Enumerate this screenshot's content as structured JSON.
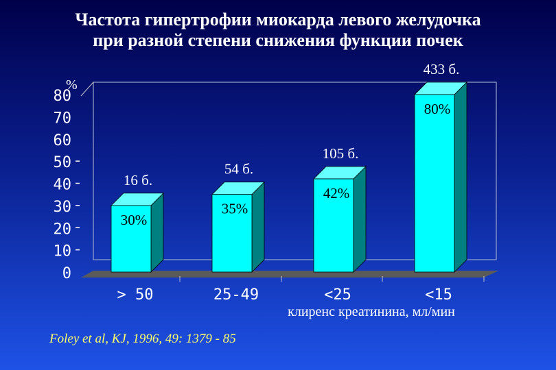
{
  "title_lines": [
    "Частота гипертрофии миокарда левого желудочка",
    "при разной степени снижения функции почек"
  ],
  "citation": "Foley et al, KJ, 1996, 49: 1379 - 85",
  "colors": {
    "bar_front": "#00ffff",
    "bar_side": "#008080",
    "bar_top": "#66ffff",
    "floor": "#5a5a5a",
    "text": "#ffffff",
    "citation": "#ffff66"
  },
  "chart_data": {
    "type": "bar",
    "categories": [
      "> 50",
      "25-49",
      "<25",
      "<15"
    ],
    "values": [
      30,
      35,
      42,
      80
    ],
    "value_labels": [
      "30%",
      "35%",
      "42%",
      "80%"
    ],
    "count_labels": [
      "16 б.",
      "54 б.",
      "105 б.",
      "433 б."
    ],
    "ylabel": "%",
    "xlabel": "клиренс креатинина, мл/мин",
    "yticks": [
      "0",
      "10",
      "20",
      "30",
      "40",
      "50",
      "60",
      "70",
      "80"
    ],
    "ylim": [
      0,
      80
    ],
    "grid": false,
    "legend": "none"
  }
}
